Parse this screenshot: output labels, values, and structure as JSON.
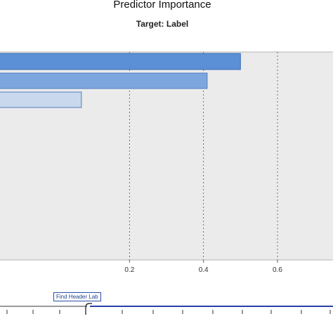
{
  "title": "Predictor Importance",
  "subtitle": "Target: Label",
  "colors": {
    "bar_primary": "#5b8fd6",
    "bar_secondary": "#7ea6de",
    "bar_light": "#c9d8ec",
    "plot_background": "#ebebeb",
    "gridline": "#555555",
    "slider_accent": "#2a3fa8"
  },
  "chart_data": {
    "type": "bar",
    "orientation": "horizontal",
    "title": "Predictor Importance",
    "subtitle": "Target: Label",
    "xlabel": "",
    "ylabel": "",
    "xlim": [
      -0.15,
      0.75
    ],
    "x_ticks": [
      "0.2",
      "0.4",
      "0.6"
    ],
    "x_tick_values": [
      0.2,
      0.4,
      0.6
    ],
    "grid": "vertical dashed at 0.2, 0.4, 0.6",
    "values": [
      0.5,
      0.41,
      0.07
    ]
  },
  "slider": {
    "tooltip": "Find Header Lab"
  }
}
